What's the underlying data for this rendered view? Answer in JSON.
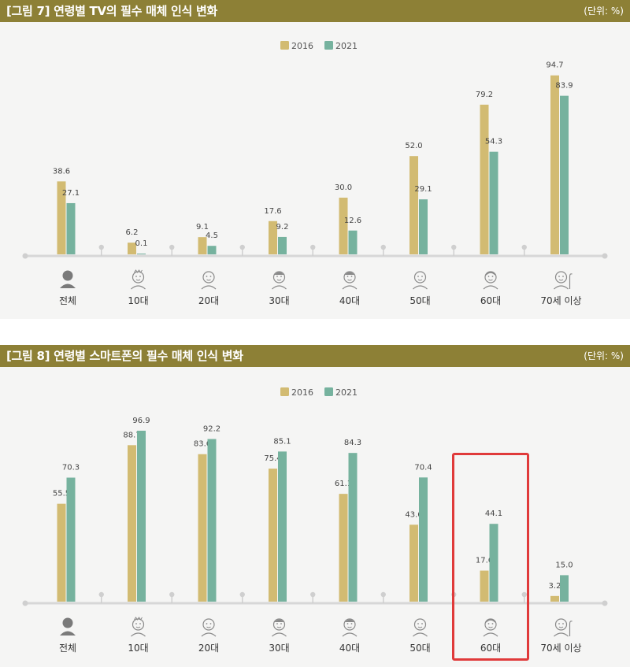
{
  "colors": {
    "header": "#8d8036",
    "s2016": "#d2bb72",
    "s2021": "#76b29e",
    "highlight": "#e03a3a"
  },
  "figure1": {
    "title": "[그림 7]  연령별 TV의 필수 매체 인식 변화",
    "unit": "(단위: %)"
  },
  "figure2": {
    "title": "[그림 8]  연령별 스마트폰의 필수 매체 인식 변화",
    "unit": "(단위: %)"
  },
  "chart_data": [
    {
      "type": "bar",
      "title": "[그림 7]  연령별 TV의 필수 매체 인식 변화",
      "unit": "(단위: %)",
      "categories": [
        "전체",
        "10대",
        "20대",
        "30대",
        "40대",
        "50대",
        "60대",
        "70세 이상"
      ],
      "category_icons": [
        "person-silhouette-icon",
        "teen-face-icon",
        "twenties-face-icon",
        "thirties-face-icon",
        "forties-face-icon",
        "fifties-face-icon",
        "sixties-face-icon",
        "senior-with-cane-icon"
      ],
      "series": [
        {
          "name": "2016",
          "values": [
            38.6,
            6.2,
            9.1,
            17.6,
            30.0,
            52.0,
            79.2,
            94.7
          ]
        },
        {
          "name": "2021",
          "values": [
            27.1,
            0.1,
            4.5,
            9.2,
            12.6,
            29.1,
            54.3,
            83.9
          ]
        }
      ],
      "value_labels": [
        [
          "38.6",
          "6.2",
          "9.1",
          "17.6",
          "30.0",
          "52.0",
          "79.2",
          "94.7"
        ],
        [
          "27.1",
          "0.1",
          "4.5",
          "9.2",
          "12.6",
          "29.1",
          "54.3",
          "83.9"
        ]
      ],
      "ylim": [
        0,
        100
      ],
      "legend": "top-center",
      "grid": false
    },
    {
      "type": "bar",
      "title": "[그림 8]  연령별 스마트폰의 필수 매체 인식 변화",
      "unit": "(단위: %)",
      "categories": [
        "전체",
        "10대",
        "20대",
        "30대",
        "40대",
        "50대",
        "60대",
        "70세 이상"
      ],
      "category_icons": [
        "person-silhouette-icon",
        "teen-face-icon",
        "twenties-face-icon",
        "thirties-face-icon",
        "forties-face-icon",
        "fifties-face-icon",
        "sixties-face-icon",
        "senior-with-cane-icon"
      ],
      "series": [
        {
          "name": "2016",
          "values": [
            55.5,
            88.7,
            83.6,
            75.4,
            61.1,
            43.6,
            17.6,
            3.2
          ]
        },
        {
          "name": "2021",
          "values": [
            70.3,
            96.9,
            92.2,
            85.1,
            84.3,
            70.4,
            44.1,
            15.0
          ]
        }
      ],
      "value_labels": [
        [
          "55.5",
          "88.7",
          "83.6",
          "75.4",
          "61.1",
          "43.6",
          "17.6",
          "3.2"
        ],
        [
          "70.3",
          "96.9",
          "92.2",
          "85.1",
          "84.3",
          "70.4",
          "44.1",
          "15.0"
        ]
      ],
      "ylim": [
        0,
        100
      ],
      "legend": "top-center",
      "grid": false,
      "highlighted_category": "60대"
    }
  ]
}
